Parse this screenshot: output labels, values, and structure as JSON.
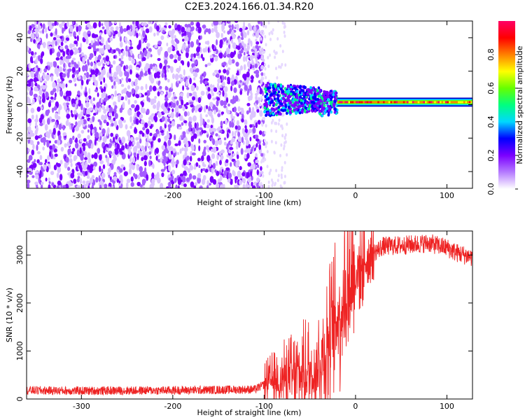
{
  "title": "C2E3.2024.166.01.34.R20",
  "colors": {
    "noise": "#8a2be2",
    "series": "#ee2222",
    "colorbar": [
      "#ffffff",
      "#b57bff",
      "#7b00ff",
      "#0000ff",
      "#00d8ff",
      "#00ff80",
      "#66ff00",
      "#ffff00",
      "#ff8000",
      "#ff0000",
      "#ff0066"
    ]
  },
  "chart_data": [
    {
      "type": "heatmap",
      "title": "C2E3.2024.166.01.34.R20",
      "xlabel": "Height of straight line (km)",
      "ylabel": "Frequency (Hz)",
      "xlim": [
        -360,
        128
      ],
      "ylim": [
        -50,
        50
      ],
      "x_ticks": [
        -300,
        -200,
        -100,
        0,
        100
      ],
      "y_ticks": [
        -40,
        -20,
        0,
        20,
        40
      ],
      "colorbar": {
        "label": "Normalized spectral amplitude",
        "range": [
          0,
          1
        ],
        "ticks": [
          "0.0",
          "0.2",
          "0.4",
          "0.6",
          "0.8"
        ]
      },
      "regions": [
        {
          "name": "noise",
          "x": [
            -360,
            -100
          ],
          "freq": [
            -50,
            50
          ],
          "amplitude": 0.15
        },
        {
          "name": "transition",
          "x": [
            -100,
            -20
          ],
          "freq": [
            -12,
            12
          ],
          "amplitude": 0.4
        },
        {
          "name": "signal",
          "x": [
            -20,
            128
          ],
          "freq": [
            0,
            3
          ],
          "amplitude": 0.95
        }
      ]
    },
    {
      "type": "line",
      "xlabel": "Height of straight line (km)",
      "ylabel": "SNR (10 * v/v)",
      "xlim": [
        -360,
        128
      ],
      "ylim": [
        0,
        3500
      ],
      "x_ticks": [
        -300,
        -200,
        -100,
        0,
        100
      ],
      "y_ticks": [
        0,
        1000,
        2000,
        3000
      ],
      "series": [
        {
          "x": [
            -360,
            -300,
            -200,
            -110,
            -100,
            -90,
            -70,
            -50,
            -40,
            -30,
            -20,
            -15,
            -10,
            -5,
            0,
            10,
            20,
            30,
            50,
            80,
            100,
            110,
            128
          ],
          "y": [
            180,
            170,
            180,
            200,
            300,
            380,
            450,
            550,
            700,
            1200,
            1700,
            1900,
            2300,
            2500,
            2600,
            2900,
            3050,
            3180,
            3200,
            3250,
            3150,
            3050,
            2950
          ]
        }
      ]
    }
  ]
}
